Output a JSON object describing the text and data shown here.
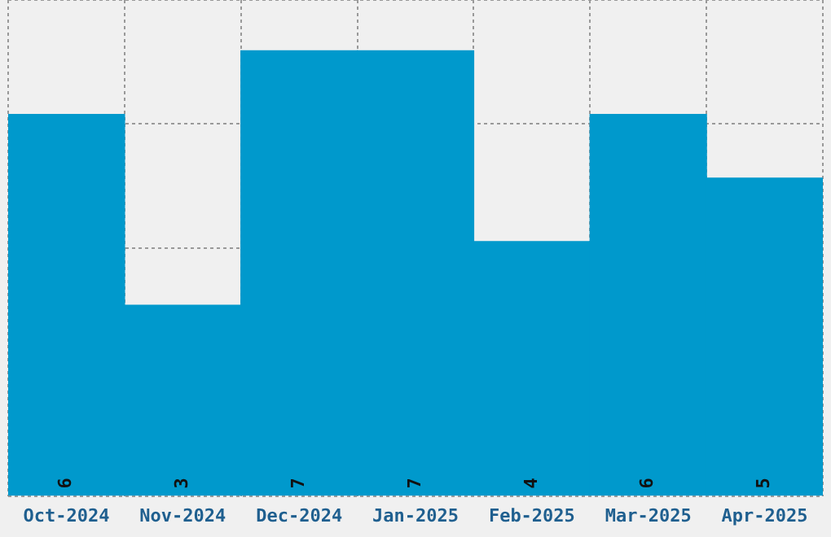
{
  "chart_data": {
    "type": "bar",
    "categories": [
      "Oct-2024",
      "Nov-2024",
      "Dec-2024",
      "Jan-2025",
      "Feb-2025",
      "Mar-2025",
      "Apr-2025"
    ],
    "values": [
      6,
      3,
      7,
      7,
      4,
      6,
      5
    ],
    "color": "#0099cc",
    "ylim": [
      0,
      7.8
    ],
    "grid": true,
    "tick_labels": "x",
    "data_labels": true
  }
}
